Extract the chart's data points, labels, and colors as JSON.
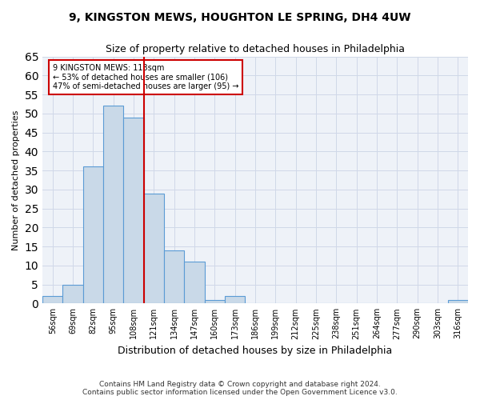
{
  "title_line1": "9, KINGSTON MEWS, HOUGHTON LE SPRING, DH4 4UW",
  "title_line2": "Size of property relative to detached houses in Philadelphia",
  "xlabel": "Distribution of detached houses by size in Philadelphia",
  "ylabel": "Number of detached properties",
  "categories": [
    "56sqm",
    "69sqm",
    "82sqm",
    "95sqm",
    "108sqm",
    "121sqm",
    "134sqm",
    "147sqm",
    "160sqm",
    "173sqm",
    "186sqm",
    "199sqm",
    "212sqm",
    "225sqm",
    "238sqm",
    "251sqm",
    "264sqm",
    "277sqm",
    "290sqm",
    "303sqm",
    "316sqm"
  ],
  "values": [
    2,
    5,
    36,
    52,
    49,
    29,
    14,
    11,
    1,
    2,
    0,
    0,
    0,
    0,
    0,
    0,
    0,
    0,
    0,
    0,
    1
  ],
  "bar_color": "#c9d9e8",
  "bar_edge_color": "#5b9bd5",
  "red_line_x": 4.5,
  "annotation_text": "9 KINGSTON MEWS: 113sqm\n← 53% of detached houses are smaller (106)\n47% of semi-detached houses are larger (95) →",
  "annotation_box_color": "#ffffff",
  "annotation_box_edge": "#cc0000",
  "ylim": [
    0,
    65
  ],
  "yticks": [
    0,
    5,
    10,
    15,
    20,
    25,
    30,
    35,
    40,
    45,
    50,
    55,
    60,
    65
  ],
  "grid_color": "#d0d8e8",
  "background_color": "#eef2f8",
  "footer_line1": "Contains HM Land Registry data © Crown copyright and database right 2024.",
  "footer_line2": "Contains public sector information licensed under the Open Government Licence v3.0."
}
